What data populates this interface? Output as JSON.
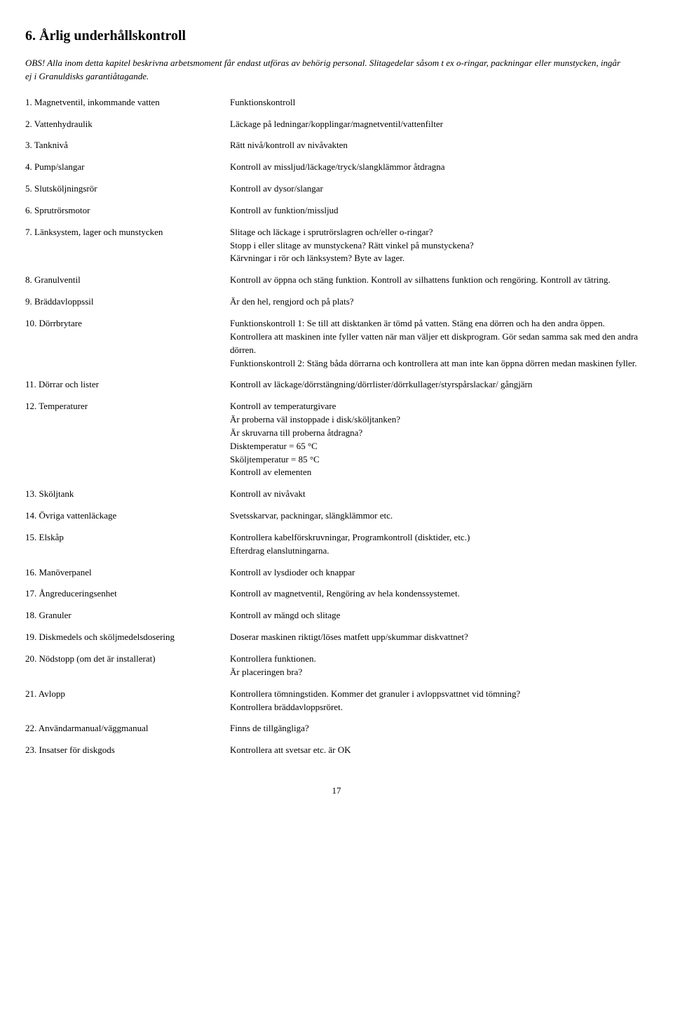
{
  "title": "6. Årlig underhållskontroll",
  "intro": "OBS! Alla inom detta kapitel beskrivna arbetsmoment får endast utföras av behörig personal. Slitagedelar såsom t ex o-ringar, packningar eller munstycken, ingår ej i Granuldisks garantiåtagande.",
  "rows": [
    {
      "label": "1. Magnetventil, inkommande vatten",
      "desc": "Funktionskontroll"
    },
    {
      "label": "2. Vattenhydraulik",
      "desc": "Läckage på ledningar/kopplingar/magnetventil/vattenfilter"
    },
    {
      "label": "3. Tanknivå",
      "desc": "Rätt nivå/kontroll av nivåvakten"
    },
    {
      "label": "4. Pump/slangar",
      "desc": "Kontroll av missljud/läckage/tryck/slangklämmor åtdragna"
    },
    {
      "label": "5. Slutsköljningsrör",
      "desc": "Kontroll av dysor/slangar"
    },
    {
      "label": "6. Sprutrörsmotor",
      "desc": "Kontroll av funktion/missljud"
    },
    {
      "label": "7. Länksystem, lager och munstycken",
      "desc": "Slitage och läckage i sprutrörslagren och/eller o-ringar?\nStopp i eller slitage av munstyckena? Rätt vinkel på munstyckena?\nKärvningar i rör och länksystem? Byte av lager."
    },
    {
      "label": "8. Granulventil",
      "desc": "Kontroll av öppna och stäng funktion. Kontroll av silhattens funktion och rengöring. Kontroll av tätring."
    },
    {
      "label": "9. Bräddavloppssil",
      "desc": "Är den hel, rengjord och på plats?"
    },
    {
      "label": "10. Dörrbrytare",
      "desc": "Funktionskontroll 1: Se till att disktanken är tömd på vatten. Stäng ena dörren och ha den andra öppen. Kontrollera att maskinen inte fyller vatten när man väljer ett diskprogram. Gör sedan samma sak med den andra dörren.\nFunktionskontroll 2: Stäng båda dörrarna och kontrollera att man inte kan öppna dörren medan maskinen fyller."
    },
    {
      "label": "11. Dörrar och lister",
      "desc": "Kontroll av läckage/dörrstängning/dörrlister/dörrkullager/styrspårslackar/ gångjärn"
    },
    {
      "label": "12. Temperaturer",
      "desc": "Kontroll av temperaturgivare\nÄr proberna väl instoppade i disk/sköljtanken?\nÄr skruvarna till proberna åtdragna?\nDisktemperatur = 65 °C\nSköljtemperatur = 85 °C\nKontroll av elementen"
    },
    {
      "label": "13. Sköljtank",
      "desc": "Kontroll av nivåvakt"
    },
    {
      "label": "14. Övriga vattenläckage",
      "desc": "Svetsskarvar, packningar, slängklämmor etc."
    },
    {
      "label": "15. Elskåp",
      "desc": "Kontrollera kabelförskruvningar, Programkontroll (disktider, etc.)\nEfterdrag elanslutningarna."
    },
    {
      "label": "16. Manöverpanel",
      "desc": "Kontroll av lysdioder och knappar"
    },
    {
      "label": "17. Ångreduceringsenhet",
      "desc": "Kontroll av magnetventil, Rengöring av hela kondenssystemet."
    },
    {
      "label": "18. Granuler",
      "desc": "Kontroll av mängd och slitage"
    },
    {
      "label": "19. Diskmedels och sköljmedelsdosering",
      "desc": "Doserar maskinen riktigt/löses matfett upp/skummar diskvattnet?"
    },
    {
      "label": "20. Nödstopp (om det är installerat)",
      "desc": "Kontrollera funktionen.\nÄr placeringen bra?"
    },
    {
      "label": "21. Avlopp",
      "desc": "Kontrollera tömningstiden. Kommer det granuler i avloppsvattnet vid tömning?\nKontrollera bräddavloppsröret."
    },
    {
      "label": "22. Användarmanual/väggmanual",
      "desc": "Finns de tillgängliga?"
    },
    {
      "label": "23. Insatser för diskgods",
      "desc": "Kontrollera att svetsar etc. är OK"
    }
  ],
  "page_number": "17"
}
